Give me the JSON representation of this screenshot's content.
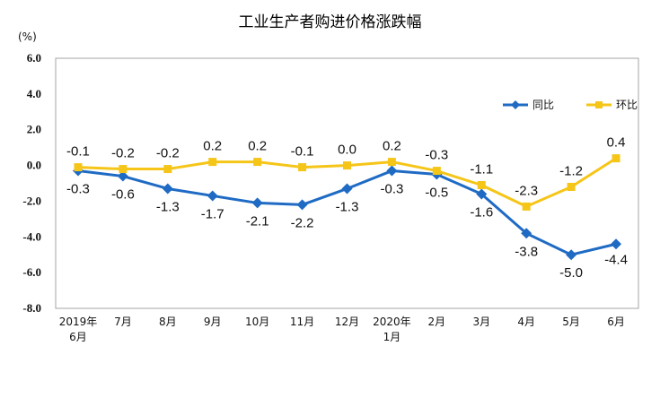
{
  "chart_data": {
    "type": "line",
    "title": "工业生产者购进价格涨跌幅",
    "unit_label": "(%)",
    "ylim": [
      -8.0,
      6.0
    ],
    "y_ticks": [
      "6.0",
      "4.0",
      "2.0",
      "0.0",
      "-2.0",
      "-4.0",
      "-6.0",
      "-8.0"
    ],
    "categories": [
      [
        "2019年",
        "6月"
      ],
      [
        "7月"
      ],
      [
        "8月"
      ],
      [
        "9月"
      ],
      [
        "10月"
      ],
      [
        "11月"
      ],
      [
        "12月"
      ],
      [
        "2020年",
        "1月"
      ],
      [
        "2月"
      ],
      [
        "3月"
      ],
      [
        "4月"
      ],
      [
        "5月"
      ],
      [
        "6月"
      ]
    ],
    "legend_position": "top-right",
    "grid": false,
    "series": [
      {
        "name": "同比",
        "color": "#1f6bc4",
        "marker": "diamond",
        "values": [
          -0.3,
          -0.6,
          -1.3,
          -1.7,
          -2.1,
          -2.2,
          -1.3,
          -0.3,
          -0.5,
          -1.6,
          -3.8,
          -5.0,
          -4.4
        ],
        "labels": [
          "-0.3",
          "-0.6",
          "-1.3",
          "-1.7",
          "-2.1",
          "-2.2",
          "-1.3",
          "-0.3",
          "-0.5",
          "-1.6",
          "-3.8",
          "-5.0",
          "-4.4"
        ]
      },
      {
        "name": "环比",
        "color": "#f5c518",
        "marker": "square",
        "values": [
          -0.1,
          -0.2,
          -0.2,
          0.2,
          0.2,
          -0.1,
          0.0,
          0.2,
          -0.3,
          -1.1,
          -2.3,
          -1.2,
          0.4
        ],
        "labels": [
          "-0.1",
          "-0.2",
          "-0.2",
          "0.2",
          "0.2",
          "-0.1",
          "0.0",
          "0.2",
          "-0.3",
          "-1.1",
          "-2.3",
          "-1.2",
          "0.4"
        ]
      }
    ]
  }
}
